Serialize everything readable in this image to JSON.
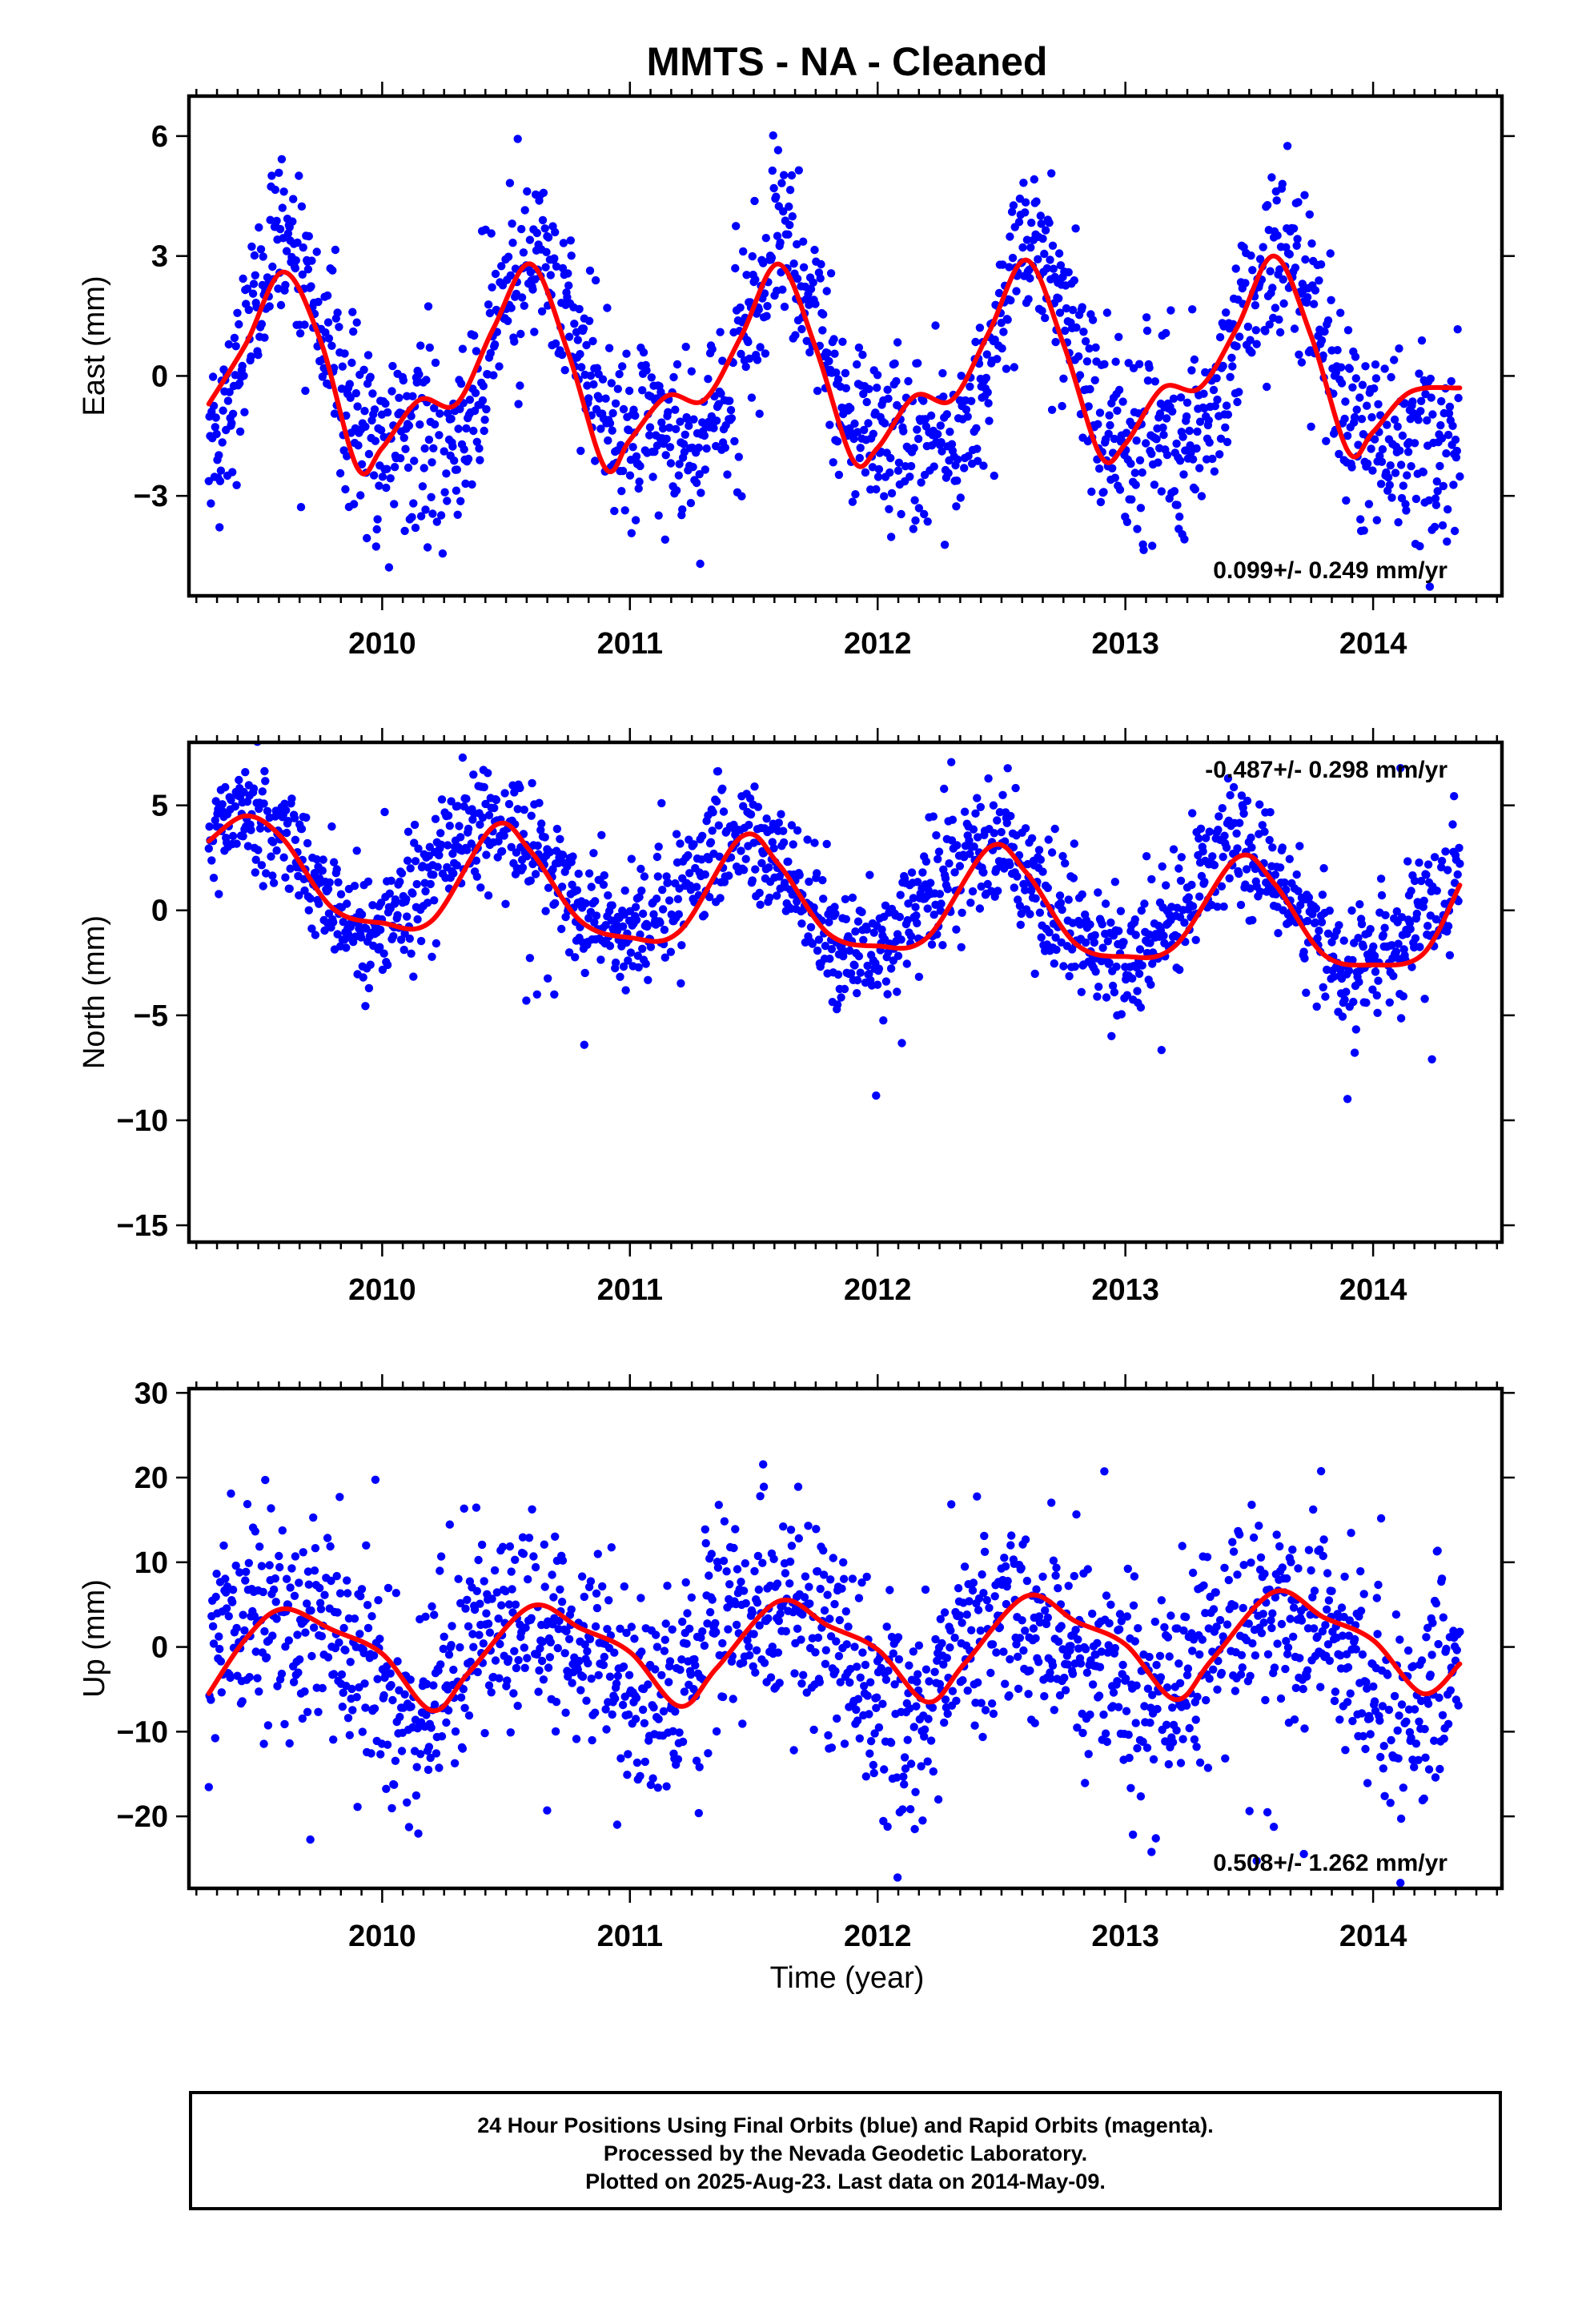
{
  "title": "MMTS  - NA - Cleaned",
  "xlabel": "Time (year)",
  "footer": {
    "line1": "24 Hour Positions Using Final Orbits (blue) and Rapid Orbits (magenta).",
    "line2": "Processed by the Nevada Geodetic Laboratory.",
    "line3": "Plotted on 2025-Aug-23. Last data on 2014-May-09."
  },
  "colors": {
    "points": "#0000ff",
    "fit": "#ff0000",
    "frame": "#000000"
  },
  "chart_data": [
    {
      "type": "scatter",
      "ylabel": "East (mm)",
      "xlim": [
        2009.22,
        2014.52
      ],
      "ylim": [
        -5.5,
        7.0
      ],
      "yticks": [
        -3,
        0,
        3,
        6
      ],
      "xticks": [
        2010,
        2011,
        2012,
        2013,
        2014
      ],
      "rate_label": "0.099+/- 0.249 mm/yr",
      "rate_position": "bottom-right",
      "data_start": 2009.3,
      "data_end": 2014.35,
      "model": {
        "mean": 0.0,
        "annual_amp": 2.3,
        "annual_peak": 2009.62,
        "semi_amp": 0.8,
        "semi_peak": 2009.62
      },
      "point_scatter": 1.1,
      "series": [
        {
          "name": "daily positions",
          "style": "points"
        },
        {
          "name": "seasonal fit",
          "style": "line",
          "x": [
            2009.3,
            2009.45,
            2009.6,
            2009.75,
            2009.9,
            2010.0,
            2010.15,
            2010.3,
            2010.45,
            2010.6,
            2010.75,
            2010.9,
            2011.0,
            2011.15,
            2011.3,
            2011.45,
            2011.6,
            2011.75,
            2011.9,
            2012.0,
            2012.15,
            2012.3,
            2012.45,
            2012.6,
            2012.75,
            2012.9,
            2013.0,
            2013.15,
            2013.3,
            2013.45,
            2013.6,
            2013.75,
            2013.9,
            2014.0,
            2014.15,
            2014.35
          ],
          "y": [
            -0.7,
            0.8,
            2.6,
            0.9,
            -2.3,
            -1.8,
            -0.6,
            -0.7,
            1.2,
            2.8,
            0.6,
            -2.3,
            -1.6,
            -0.5,
            -0.6,
            1.0,
            2.8,
            0.7,
            -2.1,
            -1.8,
            -0.5,
            -0.6,
            1.1,
            2.9,
            0.8,
            -2.0,
            -1.7,
            -0.3,
            -0.3,
            1.2,
            3.0,
            1.0,
            -1.9,
            -1.4,
            -0.4,
            -0.3
          ]
        }
      ]
    },
    {
      "type": "scatter",
      "ylabel": "North (mm)",
      "xlim": [
        2009.22,
        2014.52
      ],
      "ylim": [
        -15.8,
        8.0
      ],
      "yticks": [
        -15,
        -10,
        -5,
        0,
        5
      ],
      "xticks": [
        2010,
        2011,
        2012,
        2013,
        2014
      ],
      "rate_label": "-0.487+/- 0.298 mm/yr",
      "rate_position": "top-right",
      "data_start": 2009.3,
      "data_end": 2014.35,
      "model": {
        "mean": 0.9,
        "rate": -0.487,
        "annual_amp": 2.6,
        "annual_peak": 2009.45,
        "semi_amp": 0.0,
        "semi_peak": 2009.45
      },
      "point_scatter": 1.4,
      "series": [
        {
          "name": "daily positions",
          "style": "points"
        },
        {
          "name": "seasonal fit",
          "style": "line",
          "x": [
            2009.3,
            2009.45,
            2009.6,
            2009.8,
            2010.0,
            2010.2,
            2010.45,
            2010.6,
            2010.8,
            2011.0,
            2011.2,
            2011.45,
            2011.6,
            2011.8,
            2012.0,
            2012.2,
            2012.45,
            2012.6,
            2012.8,
            2013.0,
            2013.2,
            2013.45,
            2013.6,
            2013.8,
            2014.0,
            2014.2,
            2014.35
          ],
          "y": [
            3.3,
            4.5,
            3.4,
            0.1,
            -0.6,
            -0.5,
            4.0,
            2.8,
            -0.5,
            -1.3,
            -1.0,
            3.5,
            2.2,
            -1.1,
            -1.7,
            -1.3,
            3.0,
            1.8,
            -1.6,
            -2.2,
            -1.7,
            2.5,
            1.3,
            -2.1,
            -2.6,
            -2.1,
            1.2
          ]
        }
      ]
    },
    {
      "type": "scatter",
      "ylabel": "Up (mm)",
      "xlim": [
        2009.22,
        2014.52
      ],
      "ylim": [
        -28.5,
        30.5
      ],
      "yticks": [
        -20,
        -10,
        0,
        10,
        20,
        30
      ],
      "xticks": [
        2010,
        2011,
        2012,
        2013,
        2014
      ],
      "rate_label": "0.508+/- 1.262 mm/yr",
      "rate_position": "bottom-right",
      "data_start": 2009.3,
      "data_end": 2014.35,
      "model": {
        "mean": -1.0,
        "annual_amp": 5.0,
        "annual_peak": 2009.58,
        "semi_amp": 1.6,
        "semi_peak": 2009.38
      },
      "point_scatter": 6.0,
      "series": [
        {
          "name": "daily positions",
          "style": "points"
        },
        {
          "name": "seasonal fit",
          "style": "line",
          "x": [
            2009.3,
            2009.45,
            2009.6,
            2009.8,
            2010.0,
            2010.2,
            2010.35,
            2010.6,
            2010.8,
            2011.0,
            2011.2,
            2011.35,
            2011.6,
            2011.8,
            2012.0,
            2012.2,
            2012.35,
            2012.6,
            2012.8,
            2013.0,
            2013.2,
            2013.35,
            2013.6,
            2013.8,
            2014.0,
            2014.2,
            2014.35
          ],
          "y": [
            -5.5,
            1.0,
            4.5,
            2.0,
            -0.8,
            -7.5,
            -3.0,
            4.8,
            2.2,
            -0.6,
            -7.0,
            -2.5,
            5.4,
            2.5,
            -0.3,
            -6.5,
            -2.0,
            6.0,
            3.0,
            0.3,
            -6.2,
            -1.5,
            6.5,
            3.5,
            0.8,
            -5.5,
            -2.0
          ]
        }
      ]
    }
  ]
}
